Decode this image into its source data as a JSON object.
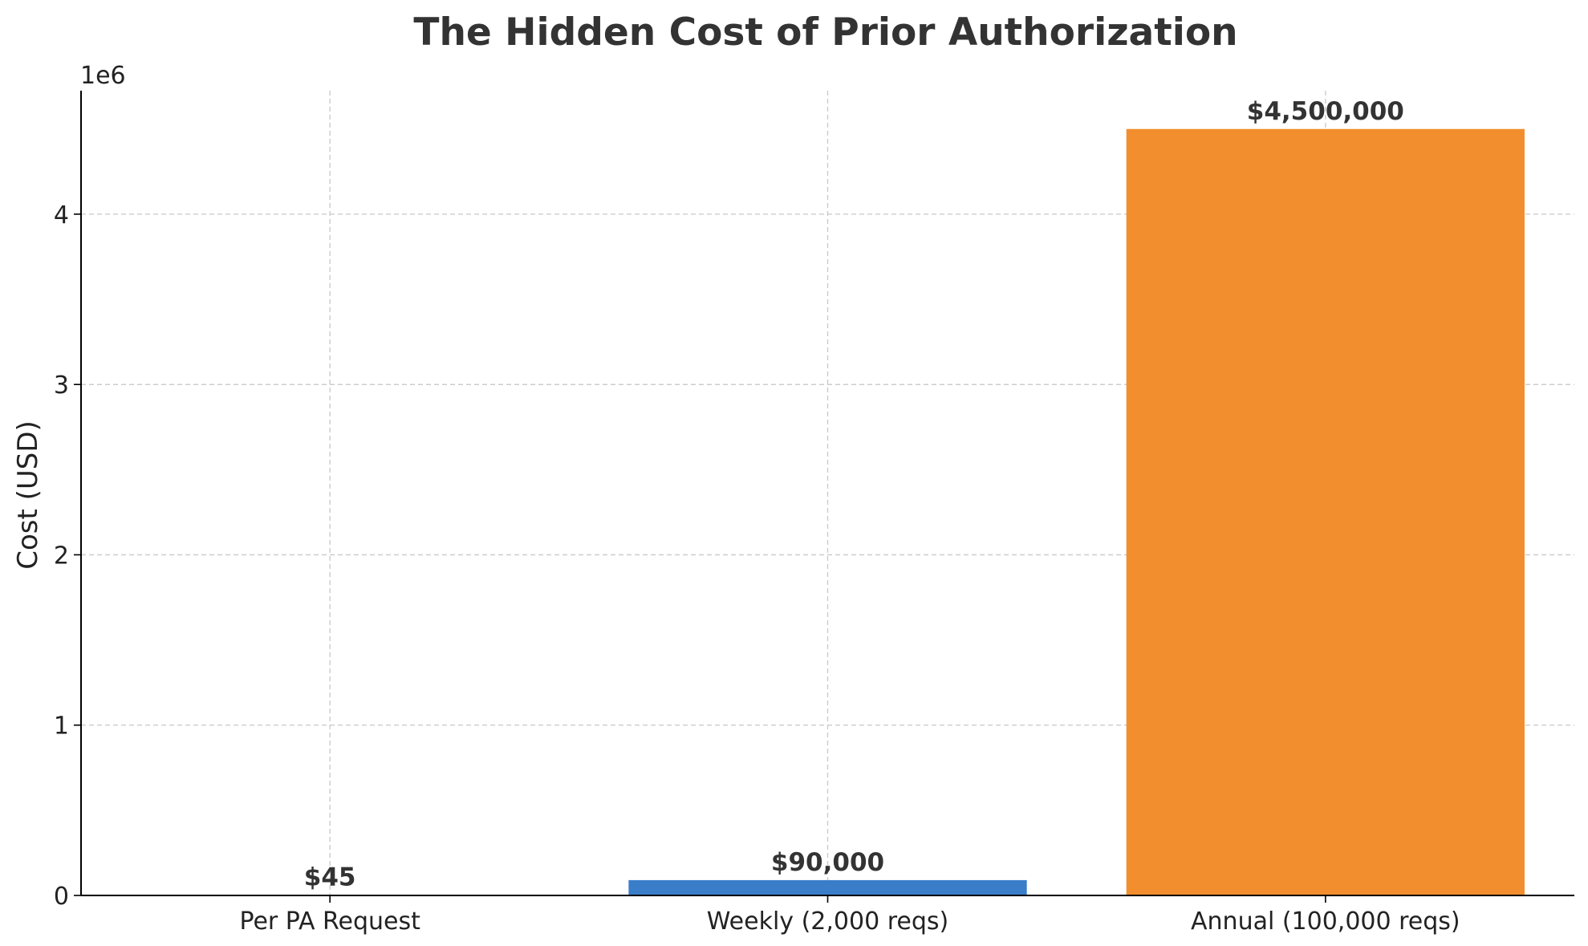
{
  "chart_data": {
    "type": "bar",
    "title": "The Hidden Cost of Prior Authorization",
    "xlabel": "",
    "ylabel": "Cost (USD)",
    "y_offset_text": "1e6",
    "categories": [
      "Per PA Request",
      "Weekly (2,000 reqs)",
      "Annual (100,000 reqs)"
    ],
    "values": [
      45,
      90000,
      4500000
    ],
    "data_labels": [
      "$45",
      "$90,000",
      "$4,500,000"
    ],
    "bar_colors": [
      "#e15759",
      "#3a7dc9",
      "#f28e2e"
    ],
    "ylim": [
      0,
      4725000
    ],
    "yticks": [
      0,
      1000000,
      2000000,
      3000000,
      4000000
    ],
    "ytick_labels": [
      "0",
      "1",
      "2",
      "3",
      "4"
    ],
    "grid": true
  }
}
